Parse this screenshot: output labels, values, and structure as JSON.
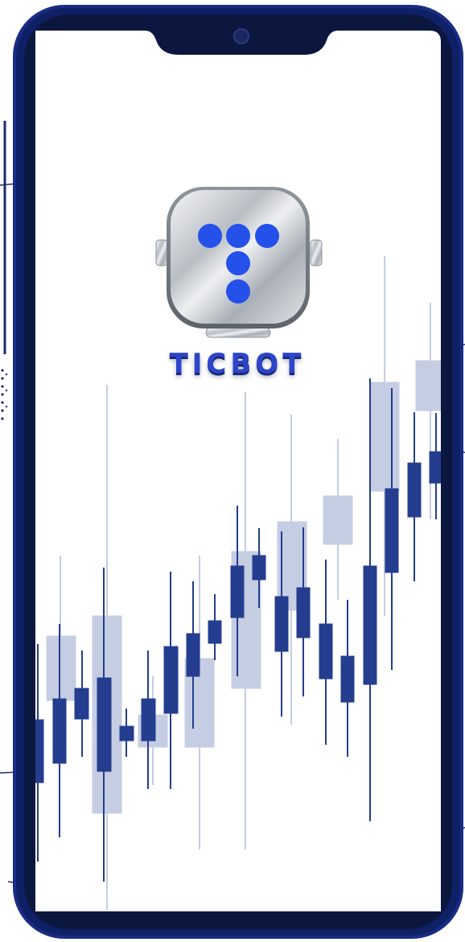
{
  "app": {
    "name": "TICBOT"
  },
  "colors": {
    "frame_outer": "#0f1b4f",
    "frame_bezel": "#0c1740",
    "screen": "#ffffff",
    "candle_dark": "#243d8f",
    "candle_light": "#c5cde3",
    "logo_dot": "#2550ea",
    "logo_metal": "#c7ccd1"
  },
  "icons": {
    "logo": "robot-head-t-logo-icon",
    "camera": "front-camera-icon"
  }
}
